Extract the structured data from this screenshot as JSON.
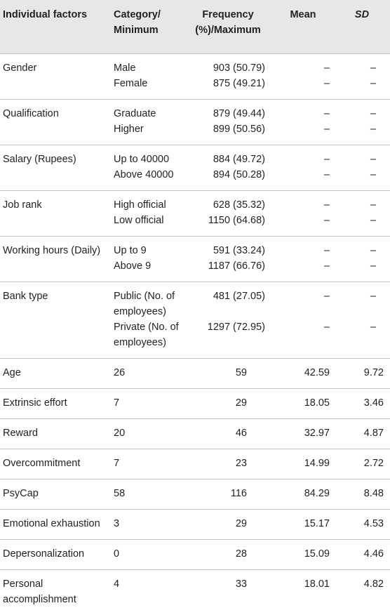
{
  "table": {
    "header": [
      "Individual factors",
      "Category/ Minimum",
      "Frequency (%)/Maximum",
      "Mean",
      "SD"
    ],
    "sections": [
      {
        "factor": "Gender",
        "items": [
          [
            "Male",
            "903 (50.79)",
            "–",
            "–"
          ],
          [
            "Female",
            "875 (49.21)",
            "–",
            "–"
          ]
        ]
      },
      {
        "factor": "Qualification",
        "items": [
          [
            "Graduate",
            "879 (49.44)",
            "–",
            "–"
          ],
          [
            "Higher",
            "899 (50.56)",
            "–",
            "–"
          ]
        ]
      },
      {
        "factor": "Salary (Rupees)",
        "items": [
          [
            "Up to 40000",
            "884 (49.72)",
            "–",
            "–"
          ],
          [
            "Above 40000",
            "894 (50.28)",
            "–",
            "–"
          ]
        ]
      },
      {
        "factor": "Job rank",
        "items": [
          [
            "High official",
            "628 (35.32)",
            "–",
            "–"
          ],
          [
            "Low official",
            "1150 (64.68)",
            "–",
            "–"
          ]
        ]
      },
      {
        "factor": "Working hours (Daily)",
        "items": [
          [
            "Up to 9",
            "591 (33.24)",
            "–",
            "–"
          ],
          [
            "Above 9",
            "1187 (66.76)",
            "–",
            "–"
          ]
        ]
      },
      {
        "factor": "Bank type",
        "items": [
          [
            "Public (No. of employees)",
            "481 (27.05)",
            "–",
            "–"
          ],
          [
            "Private (No. of employees)",
            "1297 (72.95)",
            "–",
            "–"
          ]
        ]
      },
      {
        "factor": "Age",
        "items": [
          [
            26,
            59,
            42.59,
            9.72
          ]
        ]
      },
      {
        "factor": "Extrinsic effort",
        "items": [
          [
            7,
            29,
            18.05,
            3.46
          ]
        ]
      },
      {
        "factor": "Reward",
        "items": [
          [
            20,
            46,
            32.97,
            4.87
          ]
        ]
      },
      {
        "factor": "Overcommitment",
        "items": [
          [
            7,
            23,
            14.99,
            2.72
          ]
        ]
      },
      {
        "factor": "PsyCap",
        "items": [
          [
            58,
            116,
            84.29,
            8.48
          ]
        ]
      },
      {
        "factor": "Emotional exhaustion",
        "items": [
          [
            3,
            29,
            15.17,
            4.53
          ]
        ]
      },
      {
        "factor": "Depersonalization",
        "items": [
          [
            0,
            28,
            15.09,
            4.46
          ]
        ]
      },
      {
        "factor": "Personal accomplishment",
        "items": [
          [
            4,
            33,
            18.01,
            4.82
          ]
        ]
      }
    ]
  }
}
